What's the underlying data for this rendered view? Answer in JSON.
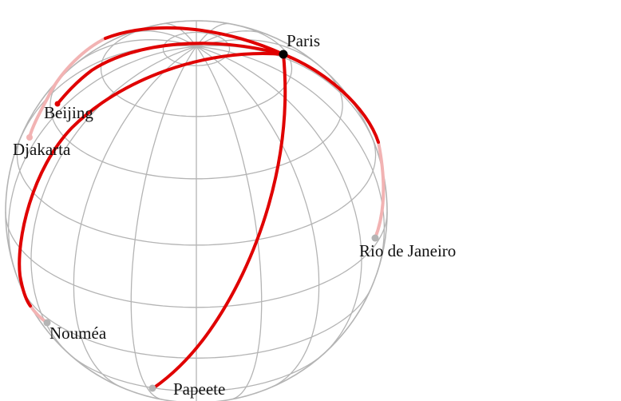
{
  "diagram": {
    "colors": {
      "graticule": "#b4b4b4",
      "route": "#e00000",
      "route_far_side": "#f2b3b3",
      "origin_marker": "#000000",
      "city_marker": "#b4b4b4",
      "label": "#111111"
    },
    "origin": {
      "name": "Paris"
    },
    "cities": [
      {
        "name": "Beijing"
      },
      {
        "name": "Djakarta"
      },
      {
        "name": "Rio de Janeiro"
      },
      {
        "name": "Nouméa"
      },
      {
        "name": "Papeete"
      }
    ]
  }
}
